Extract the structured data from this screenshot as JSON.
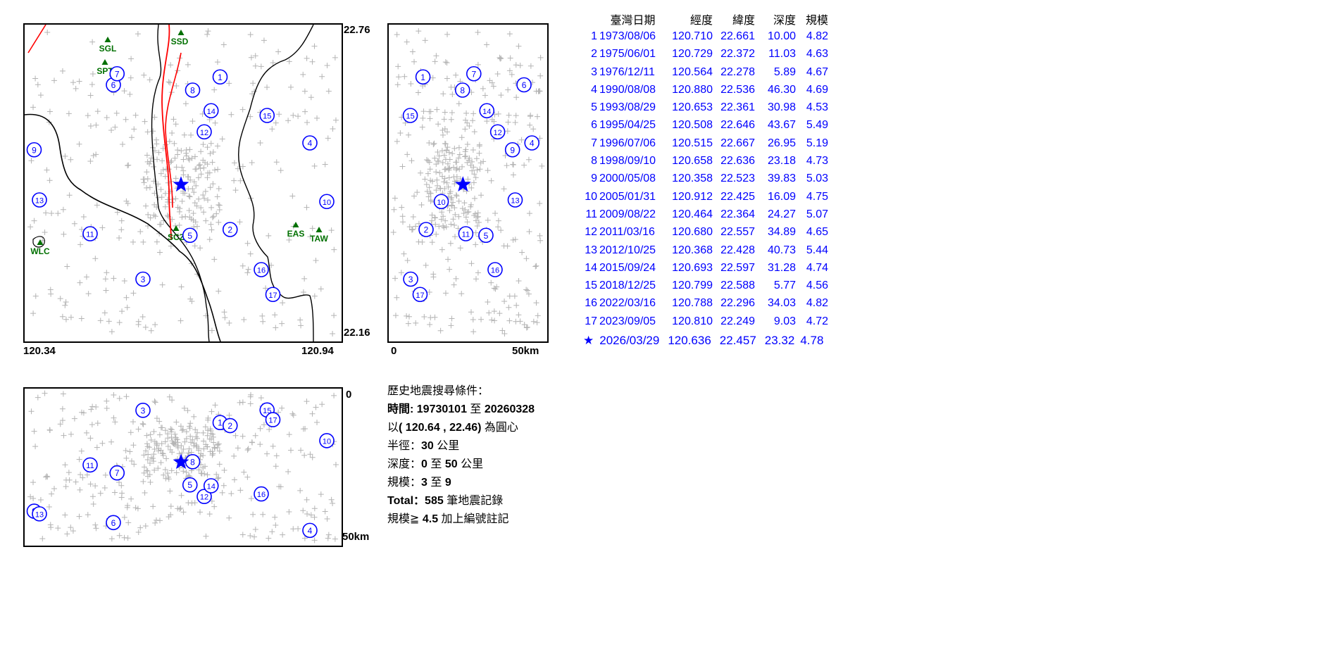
{
  "map": {
    "lat_top": "22.76",
    "lat_bottom": "22.16",
    "lon_left": "120.34",
    "lon_right": "120.94",
    "stations": [
      "SSD",
      "SGL",
      "SPT",
      "SCZ",
      "EAS",
      "TAW",
      "WLC"
    ]
  },
  "section_ew": {
    "left_label": "0",
    "right_label": "50km"
  },
  "section_ns": {
    "top_label": "0",
    "bottom_label": "50km"
  },
  "table": {
    "headers": {
      "no": "",
      "date": "臺灣日期",
      "lon": "經度",
      "lat": "緯度",
      "depth": "深度",
      "mag": "規模"
    },
    "rows": [
      {
        "no": "1",
        "date": "1973/08/06",
        "lon": "120.710",
        "lat": "22.661",
        "depth": "10.00",
        "mag": "4.82"
      },
      {
        "no": "2",
        "date": "1975/06/01",
        "lon": "120.729",
        "lat": "22.372",
        "depth": "11.03",
        "mag": "4.63"
      },
      {
        "no": "3",
        "date": "1976/12/11",
        "lon": "120.564",
        "lat": "22.278",
        "depth": "5.89",
        "mag": "4.67"
      },
      {
        "no": "4",
        "date": "1990/08/08",
        "lon": "120.880",
        "lat": "22.536",
        "depth": "46.30",
        "mag": "4.69"
      },
      {
        "no": "5",
        "date": "1993/08/29",
        "lon": "120.653",
        "lat": "22.361",
        "depth": "30.98",
        "mag": "4.53"
      },
      {
        "no": "6",
        "date": "1995/04/25",
        "lon": "120.508",
        "lat": "22.646",
        "depth": "43.67",
        "mag": "5.49"
      },
      {
        "no": "7",
        "date": "1996/07/06",
        "lon": "120.515",
        "lat": "22.667",
        "depth": "26.95",
        "mag": "5.19"
      },
      {
        "no": "8",
        "date": "1998/09/10",
        "lon": "120.658",
        "lat": "22.636",
        "depth": "23.18",
        "mag": "4.73"
      },
      {
        "no": "9",
        "date": "2000/05/08",
        "lon": "120.358",
        "lat": "22.523",
        "depth": "39.83",
        "mag": "5.03"
      },
      {
        "no": "10",
        "date": "2005/01/31",
        "lon": "120.912",
        "lat": "22.425",
        "depth": "16.09",
        "mag": "4.75"
      },
      {
        "no": "11",
        "date": "2009/08/22",
        "lon": "120.464",
        "lat": "22.364",
        "depth": "24.27",
        "mag": "5.07"
      },
      {
        "no": "12",
        "date": "2011/03/16",
        "lon": "120.680",
        "lat": "22.557",
        "depth": "34.89",
        "mag": "4.65"
      },
      {
        "no": "13",
        "date": "2012/10/25",
        "lon": "120.368",
        "lat": "22.428",
        "depth": "40.73",
        "mag": "5.44"
      },
      {
        "no": "14",
        "date": "2015/09/24",
        "lon": "120.693",
        "lat": "22.597",
        "depth": "31.28",
        "mag": "4.74"
      },
      {
        "no": "15",
        "date": "2018/12/25",
        "lon": "120.799",
        "lat": "22.588",
        "depth": "5.77",
        "mag": "4.56"
      },
      {
        "no": "16",
        "date": "2022/03/16",
        "lon": "120.788",
        "lat": "22.296",
        "depth": "34.03",
        "mag": "4.82"
      },
      {
        "no": "17",
        "date": "2023/09/05",
        "lon": "120.810",
        "lat": "22.249",
        "depth": "9.03",
        "mag": "4.72"
      }
    ]
  },
  "current_event": {
    "symbol": "★",
    "date": "2026/03/29",
    "lon": "120.636",
    "lat": "22.457",
    "depth": "23.32",
    "mag": "4.78"
  },
  "conditions": {
    "title": "歷史地震搜尋條件：",
    "time_label": "時間: ",
    "time_from": "19730101",
    "time_to_word": " 至 ",
    "time_to": "20260328",
    "center_prefix": "以",
    "center_value": "( 120.64 , 22.46)",
    "center_suffix": " 為圓心",
    "radius_label": "半徑：",
    "radius_value": "30",
    "radius_unit": " 公里",
    "depth_label": "深度：",
    "depth_from": "0",
    "depth_to_word": " 至 ",
    "depth_to": "50",
    "depth_unit": " 公里",
    "mag_label": "規模：",
    "mag_from": "3",
    "mag_to_word": " 至 ",
    "mag_to": "9",
    "total_label": "Total：",
    "total_value": "585",
    "total_suffix": " 筆地震記錄",
    "note_prefix": "規模≧ ",
    "note_value": "4.5",
    "note_suffix": " 加上編號註記"
  },
  "colors": {
    "event_marker": "#0000ff",
    "background_quakes": "#b4b4b4",
    "fault_line": "#ff0000",
    "station": "#007000",
    "coastline": "#000000"
  }
}
